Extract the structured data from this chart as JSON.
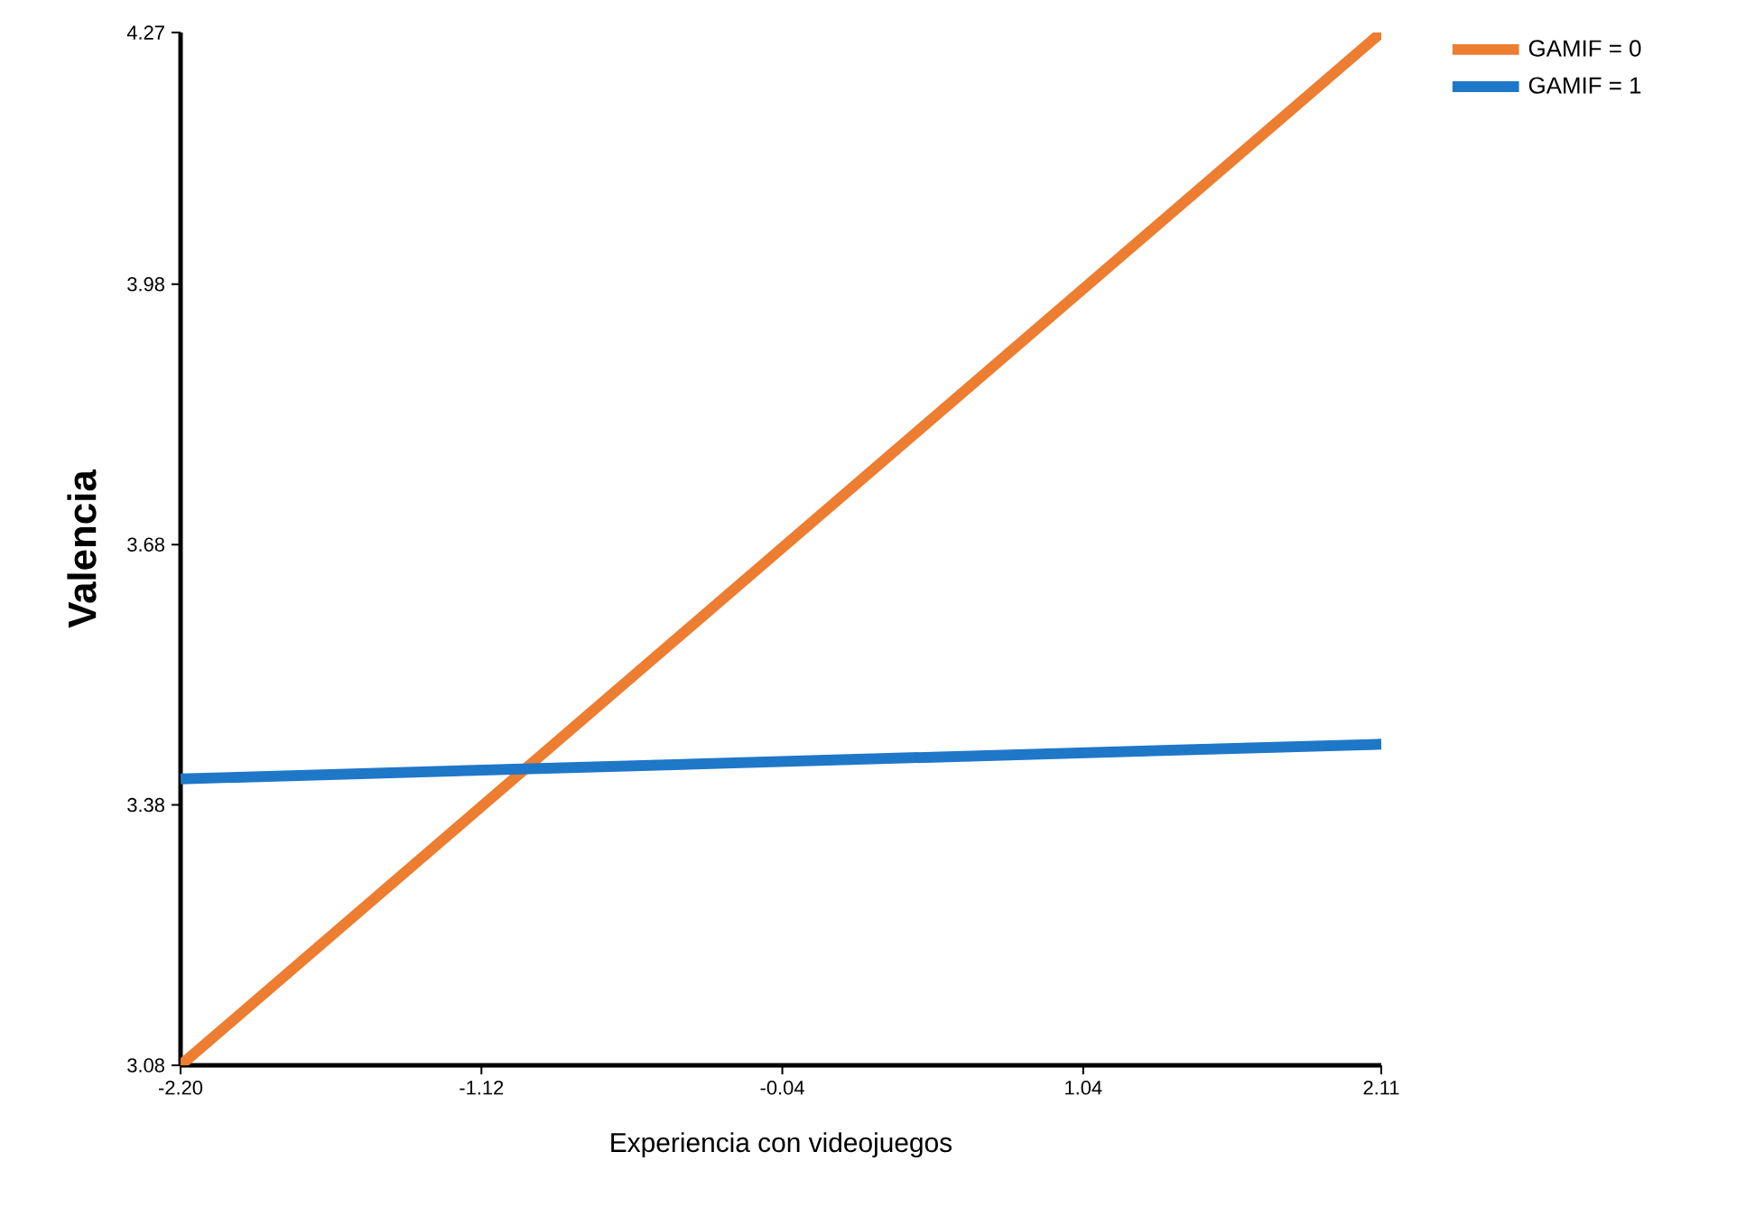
{
  "chart_data": {
    "type": "line",
    "xlabel": "Experiencia con videojuegos",
    "ylabel": "Valencia",
    "xlim": [
      -2.2,
      2.11
    ],
    "ylim": [
      3.08,
      4.27
    ],
    "xticks": [
      {
        "value": -2.2,
        "label": "-2.20"
      },
      -1.12,
      -0.04,
      1.04,
      2.11
    ],
    "yticks": [
      3.08,
      3.38,
      3.68,
      3.98,
      4.27
    ],
    "x": [
      -2.2,
      2.11
    ],
    "series": [
      {
        "name": "GAMIF = 0",
        "color": "#ed7d31",
        "values": [
          3.08,
          4.27
        ]
      },
      {
        "name": "GAMIF = 1",
        "color": "#1f77c8",
        "values": [
          3.41,
          3.45
        ]
      }
    ],
    "legend": "top right",
    "grid": false,
    "marker": "none",
    "line_style": "solid"
  }
}
